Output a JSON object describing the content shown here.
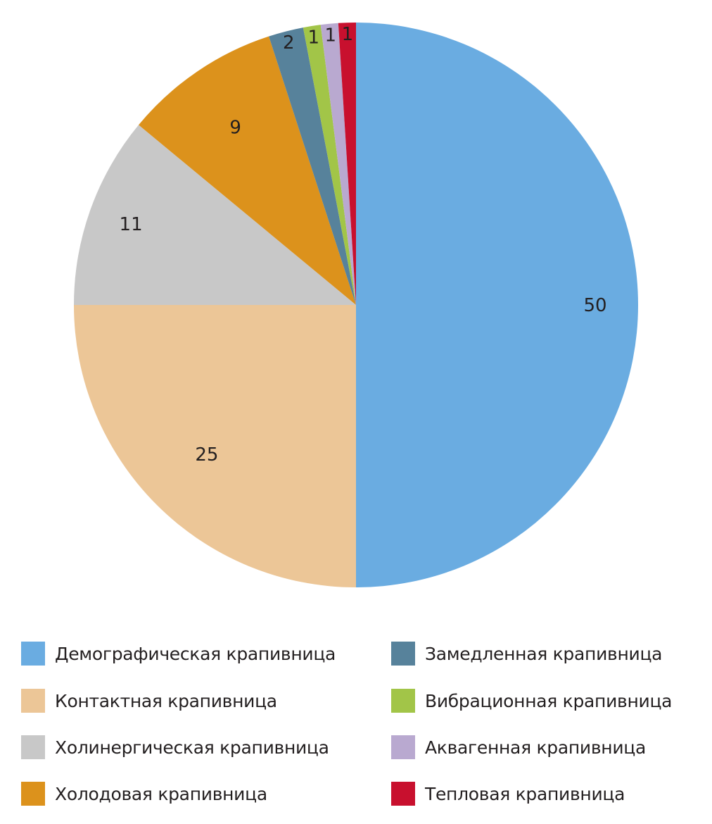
{
  "chart_data": {
    "type": "pie",
    "title": "",
    "slices": [
      {
        "name": "Демографическая крапивница",
        "value": 50,
        "label": "50",
        "color": "#6aace1"
      },
      {
        "name": "Контактная крапивница",
        "value": 25,
        "label": "25",
        "color": "#ecc697"
      },
      {
        "name": "Холинергическая крапивница",
        "value": 11,
        "label": "11",
        "color": "#c8c8c8"
      },
      {
        "name": "Холодовая крапивница",
        "value": 9,
        "label": "9",
        "color": "#dc921c"
      },
      {
        "name": "Замедленная крапивница",
        "value": 2,
        "label": "2",
        "color": "#57829b"
      },
      {
        "name": "Вибрационная крапивница",
        "value": 1,
        "label": "1",
        "color": "#a2c548"
      },
      {
        "name": "Аквагенная крапивница",
        "value": 1,
        "label": "1",
        "color": "#b9a9d0"
      },
      {
        "name": "Тепловая крапивница",
        "value": 1,
        "label": "1",
        "color": "#c8102e"
      }
    ],
    "start_angle": "12 o'clock",
    "direction": "clockwise",
    "legend_position": "bottom"
  }
}
